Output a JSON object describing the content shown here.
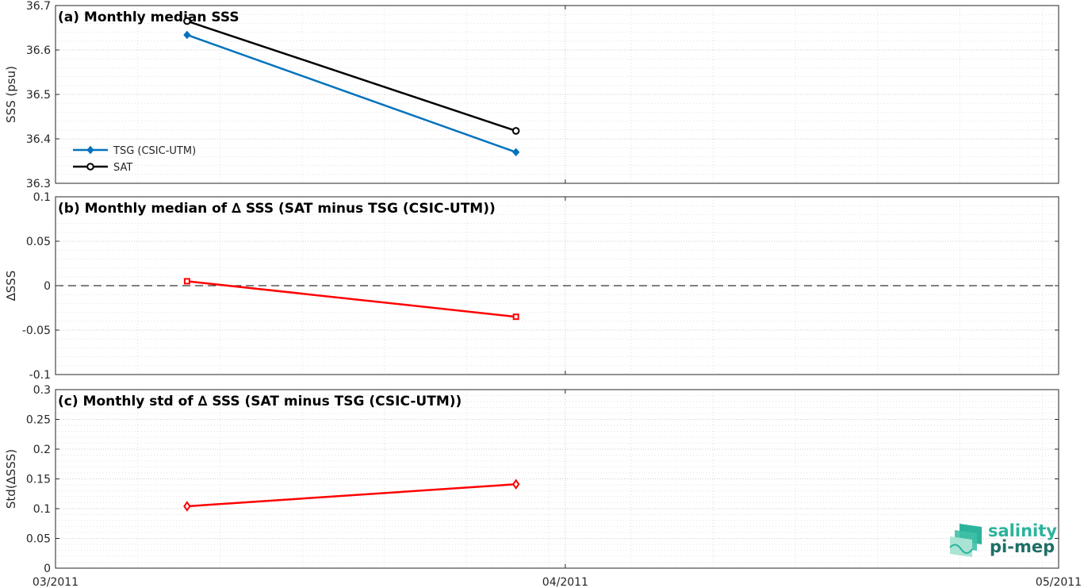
{
  "chart_data": [
    {
      "type": "line",
      "title": "(a) Monthly median SSS",
      "xlabel": "",
      "ylabel": "SSS (psu)",
      "xlim": [
        "2011-03-01",
        "2011-05-01"
      ],
      "ylim": [
        36.3,
        36.7
      ],
      "x_ticks": [
        "03/2011",
        "04/2011",
        "05/2011"
      ],
      "y_ticks": [
        "36.3",
        "36.4",
        "36.5",
        "36.6",
        "36.7"
      ],
      "grid": true,
      "legend_position": "lower-left",
      "series": [
        {
          "name": "TSG (CSIC-UTM)",
          "color": "#0072BD",
          "marker": "diamond-filled",
          "points": [
            {
              "x": "2011-03-09",
              "y": 36.634
            },
            {
              "x": "2011-03-29",
              "y": 36.37
            }
          ]
        },
        {
          "name": "SAT",
          "color": "#000000",
          "marker": "circle-open",
          "points": [
            {
              "x": "2011-03-09",
              "y": 36.665
            },
            {
              "x": "2011-03-29",
              "y": 36.418
            }
          ]
        }
      ]
    },
    {
      "type": "line",
      "title": "(b) Monthly median of ∆ SSS (SAT minus TSG (CSIC-UTM))",
      "xlabel": "",
      "ylabel": "∆SSS",
      "xlim": [
        "2011-03-01",
        "2011-05-01"
      ],
      "ylim": [
        -0.1,
        0.1
      ],
      "y_ticks": [
        "-0.1",
        "-0.05",
        "0",
        "0.05",
        "0.1"
      ],
      "grid": true,
      "reference_line": {
        "y": 0,
        "style": "dashed",
        "color": "#000000"
      },
      "series": [
        {
          "color": "#FF0000",
          "marker": "square-open",
          "points": [
            {
              "x": "2011-03-09",
              "y": 0.005
            },
            {
              "x": "2011-03-29",
              "y": -0.035
            }
          ]
        }
      ]
    },
    {
      "type": "line",
      "title": "(c) Monthly std of ∆ SSS (SAT minus TSG (CSIC-UTM))",
      "xlabel": "",
      "ylabel": "Std(∆SSS)",
      "xlim": [
        "2011-03-01",
        "2011-05-01"
      ],
      "ylim": [
        0,
        0.3
      ],
      "y_ticks": [
        "0",
        "0.05",
        "0.1",
        "0.15",
        "0.2",
        "0.25",
        "0.3"
      ],
      "grid": true,
      "series": [
        {
          "color": "#FF0000",
          "marker": "diamond-open",
          "points": [
            {
              "x": "2011-03-09",
              "y": 0.104
            },
            {
              "x": "2011-03-29",
              "y": 0.141
            }
          ]
        }
      ]
    }
  ],
  "logo": {
    "line1": "salinity",
    "line2": "pi-mep",
    "color_top": "#2bb39b",
    "color_bottom": "#1f6f66"
  }
}
